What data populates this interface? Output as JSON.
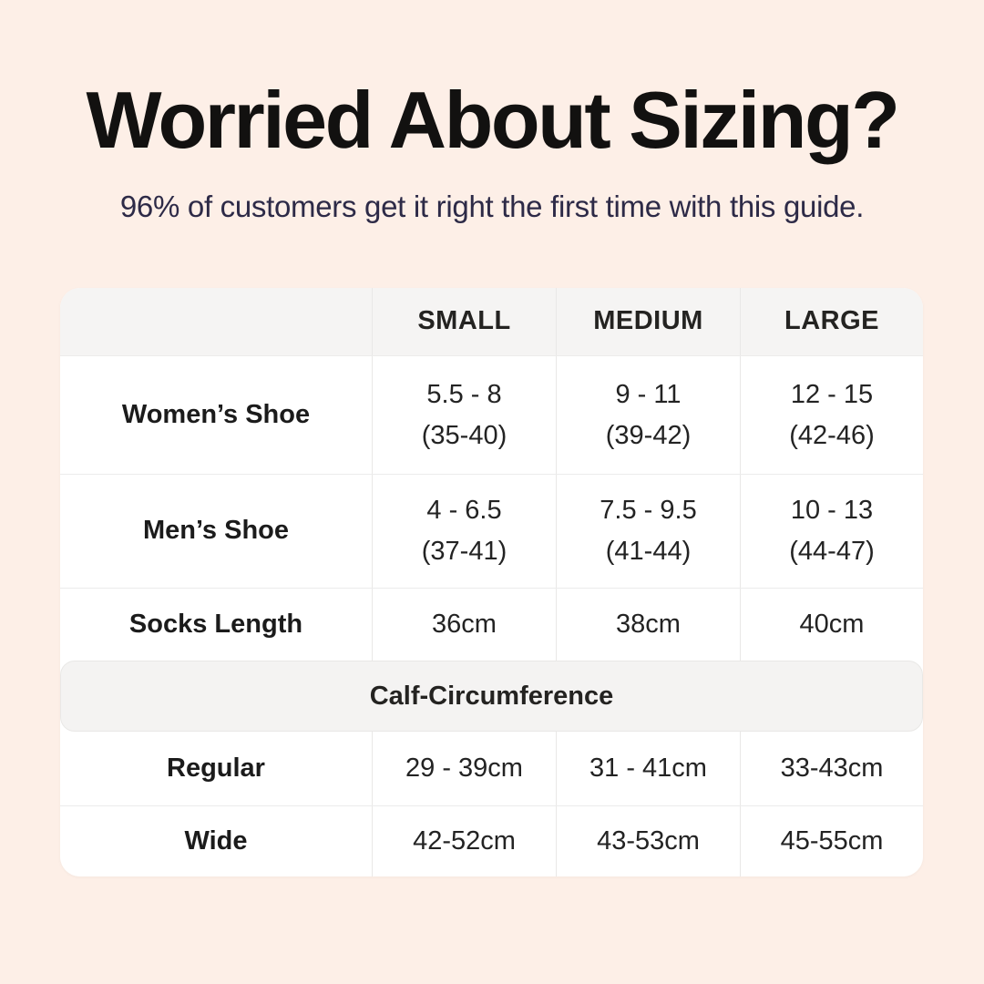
{
  "page": {
    "title": "Worried About Sizing?",
    "subtitle": "96% of customers get it right the first time with this guide.",
    "background_color": "#fdefe7",
    "title_color": "#121110",
    "subtitle_color": "#2d2a47"
  },
  "table": {
    "colors": {
      "container_bg": "#ffffff",
      "header_bg": "#f5f4f3",
      "section_band_bg": "#f4f3f2",
      "divider": "#ececeb",
      "text": "#232323"
    },
    "columns": {
      "small": "SMALL",
      "medium": "MEDIUM",
      "large": "LARGE"
    },
    "shoe_rows": [
      {
        "label": "Women’s Shoe",
        "small": {
          "line1": "5.5 - 8",
          "line2": "(35-40)"
        },
        "medium": {
          "line1": "9 - 11",
          "line2": "(39-42)"
        },
        "large": {
          "line1": "12 - 15",
          "line2": "(42-46)"
        }
      },
      {
        "label": "Men’s Shoe",
        "small": {
          "line1": "4 - 6.5",
          "line2": "(37-41)"
        },
        "medium": {
          "line1": "7.5 - 9.5",
          "line2": "(41-44)"
        },
        "large": {
          "line1": "10 - 13",
          "line2": "(44-47)"
        }
      }
    ],
    "socks_row": {
      "label": "Socks Length",
      "small": "36cm",
      "medium": "38cm",
      "large": "40cm"
    },
    "section_header": "Calf-Circumference",
    "calf_rows": [
      {
        "label": "Regular",
        "small": "29 - 39cm",
        "medium": "31 - 41cm",
        "large": "33-43cm"
      },
      {
        "label": "Wide",
        "small": "42-52cm",
        "medium": "43-53cm",
        "large": "45-55cm"
      }
    ]
  },
  "chart_data": {
    "type": "table",
    "title": "Worried About Sizing?",
    "subtitle": "96% of customers get it right the first time with this guide.",
    "columns": [
      "",
      "SMALL",
      "MEDIUM",
      "LARGE"
    ],
    "rows": [
      [
        "Women’s Shoe",
        "5.5 - 8 (35-40)",
        "9 - 11 (39-42)",
        "12 - 15 (42-46)"
      ],
      [
        "Men’s Shoe",
        "4 - 6.5 (37-41)",
        "7.5 - 9.5 (41-44)",
        "10 - 13 (44-47)"
      ],
      [
        "Socks Length",
        "36cm",
        "38cm",
        "40cm"
      ],
      [
        "Calf-Circumference",
        "",
        "",
        ""
      ],
      [
        "Regular",
        "29 - 39cm",
        "31 - 41cm",
        "33-43cm"
      ],
      [
        "Wide",
        "42-52cm",
        "43-53cm",
        "45-55cm"
      ]
    ]
  }
}
